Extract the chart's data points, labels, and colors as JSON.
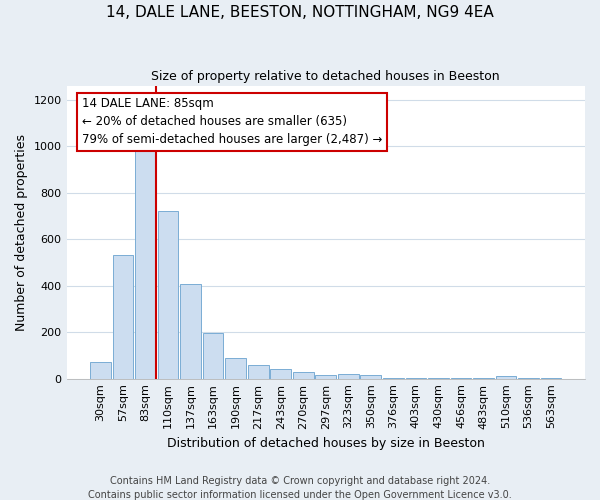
{
  "title1": "14, DALE LANE, BEESTON, NOTTINGHAM, NG9 4EA",
  "title2": "Size of property relative to detached houses in Beeston",
  "xlabel": "Distribution of detached houses by size in Beeston",
  "ylabel": "Number of detached properties",
  "footer1": "Contains HM Land Registry data © Crown copyright and database right 2024.",
  "footer2": "Contains public sector information licensed under the Open Government Licence v3.0.",
  "bar_color": "#ccddf0",
  "bar_edge_color": "#7aadd4",
  "categories": [
    "30sqm",
    "57sqm",
    "83sqm",
    "110sqm",
    "137sqm",
    "163sqm",
    "190sqm",
    "217sqm",
    "243sqm",
    "270sqm",
    "297sqm",
    "323sqm",
    "350sqm",
    "376sqm",
    "403sqm",
    "430sqm",
    "456sqm",
    "483sqm",
    "510sqm",
    "536sqm",
    "563sqm"
  ],
  "values": [
    70,
    530,
    1000,
    720,
    405,
    195,
    90,
    60,
    40,
    30,
    15,
    20,
    15,
    2,
    2,
    2,
    2,
    2,
    10,
    2,
    2
  ],
  "ylim": [
    0,
    1260
  ],
  "yticks": [
    0,
    200,
    400,
    600,
    800,
    1000,
    1200
  ],
  "annotation_box_text": "14 DALE LANE: 85sqm\n← 20% of detached houses are smaller (635)\n79% of semi-detached houses are larger (2,487) →",
  "red_line_color": "#cc0000",
  "background_color": "#e8eef4",
  "plot_bg_color": "#ffffff",
  "grid_color": "#d0dce8",
  "title1_fontsize": 11,
  "title2_fontsize": 9,
  "xlabel_fontsize": 9,
  "ylabel_fontsize": 9,
  "tick_fontsize": 8,
  "annotation_fontsize": 8.5,
  "footer_fontsize": 7
}
